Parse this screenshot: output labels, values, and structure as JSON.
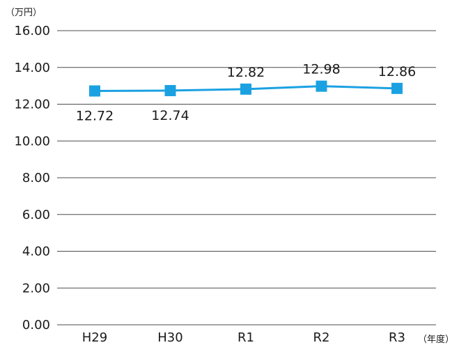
{
  "chart_data": {
    "type": "line",
    "categories": [
      "H29",
      "H30",
      "R1",
      "R2",
      "R3"
    ],
    "series": [
      {
        "values": [
          12.72,
          12.74,
          12.82,
          12.98,
          12.86
        ]
      }
    ],
    "data_labels": [
      "12.72",
      "12.74",
      "12.82",
      "12.98",
      "12.86"
    ],
    "y_ticks": [
      "0.00",
      "2.00",
      "4.00",
      "6.00",
      "8.00",
      "10.00",
      "12.00",
      "14.00",
      "16.00"
    ],
    "ylim": [
      0,
      16
    ],
    "y_unit": "（万円）",
    "x_unit": "（年度）",
    "grid": true,
    "colors": {
      "line": "#1ba1e2",
      "marker": "#1ba1e2",
      "grid": "#4d4d4d"
    }
  }
}
